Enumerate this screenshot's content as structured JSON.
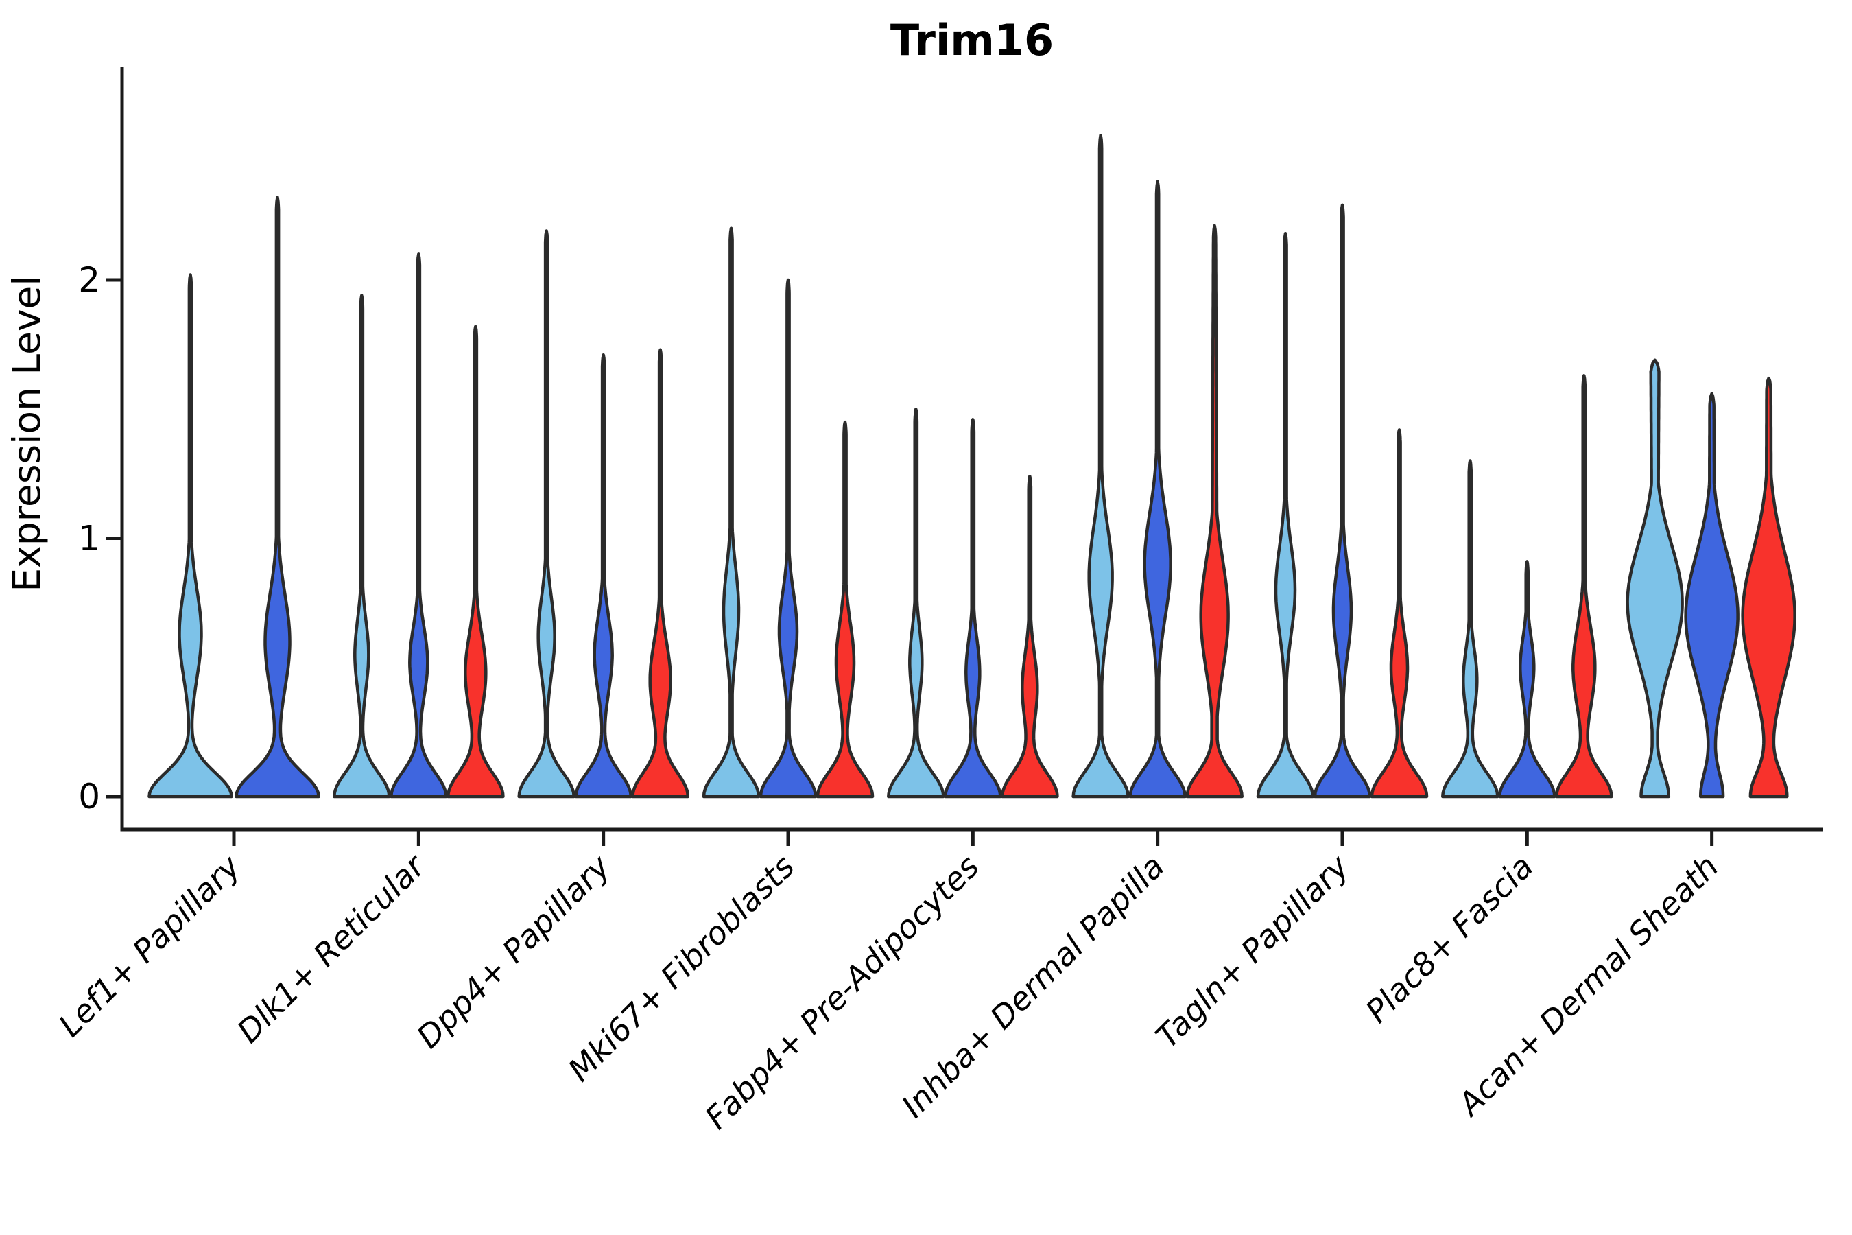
{
  "chart_data": {
    "type": "violin",
    "title": "Trim16",
    "ylabel": "Expression Level",
    "ytick_labels": [
      "0",
      "1",
      "2"
    ],
    "yticks": [
      0,
      1,
      2
    ],
    "ylim": [
      -0.13,
      2.8
    ],
    "legend": "none",
    "grid": false,
    "categories": [
      "Lef1+ Papillary",
      "Dlk1+ Reticular",
      "Dpp4+ Papillary",
      "Mki67+ Fibroblasts",
      "Fabp4+ Pre-Adipocytes",
      "Inhba+ Dermal Papilla",
      "Tagln+ Papillary",
      "Plac8+ Fascia",
      "Acan+ Dermal Sheath"
    ],
    "split_colors": {
      "s1": "#7DC2E8",
      "s2": "#3F66DF",
      "s3": "#F8322C"
    },
    "stroke_color": "#2B2B2B",
    "axis_color": "#1A1A1A",
    "groups": [
      {
        "category": "Lef1+ Papillary",
        "violins": [
          {
            "split": "s1",
            "max": 2.02,
            "bulge_center": 0.63,
            "bulge_halfwidth": 16,
            "bulge_sigma": 0.24,
            "base_halfwidth": 60
          },
          {
            "split": "s2",
            "max": 2.32,
            "bulge_center": 0.6,
            "bulge_halfwidth": 18,
            "bulge_sigma": 0.26,
            "base_halfwidth": 60
          }
        ]
      },
      {
        "category": "Dlk1+ Reticular",
        "violins": [
          {
            "split": "s1",
            "max": 1.94,
            "bulge_center": 0.55,
            "bulge_halfwidth": 10,
            "bulge_sigma": 0.19,
            "base_halfwidth": 40
          },
          {
            "split": "s2",
            "max": 2.1,
            "bulge_center": 0.52,
            "bulge_halfwidth": 13,
            "bulge_sigma": 0.19,
            "base_halfwidth": 40
          },
          {
            "split": "s3",
            "max": 1.82,
            "bulge_center": 0.48,
            "bulge_halfwidth": 15,
            "bulge_sigma": 0.21,
            "base_halfwidth": 40
          }
        ]
      },
      {
        "category": "Dpp4+ Papillary",
        "violins": [
          {
            "split": "s1",
            "max": 2.19,
            "bulge_center": 0.62,
            "bulge_halfwidth": 12,
            "bulge_sigma": 0.21,
            "base_halfwidth": 40
          },
          {
            "split": "s2",
            "max": 1.71,
            "bulge_center": 0.55,
            "bulge_halfwidth": 13,
            "bulge_sigma": 0.2,
            "base_halfwidth": 40
          },
          {
            "split": "s3",
            "max": 1.73,
            "bulge_center": 0.45,
            "bulge_halfwidth": 15,
            "bulge_sigma": 0.21,
            "base_halfwidth": 40
          }
        ]
      },
      {
        "category": "Mki67+ Fibroblasts",
        "violins": [
          {
            "split": "s1",
            "max": 2.2,
            "bulge_center": 0.72,
            "bulge_halfwidth": 11,
            "bulge_sigma": 0.23,
            "base_halfwidth": 40
          },
          {
            "split": "s2",
            "max": 2.0,
            "bulge_center": 0.64,
            "bulge_halfwidth": 13,
            "bulge_sigma": 0.21,
            "base_halfwidth": 40
          },
          {
            "split": "s3",
            "max": 1.45,
            "bulge_center": 0.52,
            "bulge_halfwidth": 13,
            "bulge_sigma": 0.21,
            "base_halfwidth": 40
          }
        ]
      },
      {
        "category": "Fabp4+ Pre-Adipocytes",
        "violins": [
          {
            "split": "s1",
            "max": 1.5,
            "bulge_center": 0.52,
            "bulge_halfwidth": 9,
            "bulge_sigma": 0.18,
            "base_halfwidth": 40
          },
          {
            "split": "s2",
            "max": 1.46,
            "bulge_center": 0.48,
            "bulge_halfwidth": 10,
            "bulge_sigma": 0.18,
            "base_halfwidth": 40
          },
          {
            "split": "s3",
            "max": 1.24,
            "bulge_center": 0.42,
            "bulge_halfwidth": 11,
            "bulge_sigma": 0.19,
            "base_halfwidth": 40
          }
        ]
      },
      {
        "category": "Inhba+ Dermal Papilla",
        "violins": [
          {
            "split": "s1",
            "max": 2.56,
            "bulge_center": 0.85,
            "bulge_halfwidth": 17,
            "bulge_sigma": 0.27,
            "base_halfwidth": 40
          },
          {
            "split": "s2",
            "max": 2.38,
            "bulge_center": 0.9,
            "bulge_halfwidth": 19,
            "bulge_sigma": 0.28,
            "base_halfwidth": 40
          },
          {
            "split": "s3",
            "max": 2.21,
            "bulge_center": 0.7,
            "bulge_halfwidth": 20,
            "bulge_sigma": 0.3,
            "base_halfwidth": 40,
            "stem": 4
          }
        ]
      },
      {
        "category": "Tagln+ Papillary",
        "violins": [
          {
            "split": "s1",
            "max": 2.18,
            "bulge_center": 0.8,
            "bulge_halfwidth": 14,
            "bulge_sigma": 0.24,
            "base_halfwidth": 40
          },
          {
            "split": "s2",
            "max": 2.29,
            "bulge_center": 0.72,
            "bulge_halfwidth": 13,
            "bulge_sigma": 0.23,
            "base_halfwidth": 40
          },
          {
            "split": "s3",
            "max": 1.42,
            "bulge_center": 0.5,
            "bulge_halfwidth": 12,
            "bulge_sigma": 0.19,
            "base_halfwidth": 40
          }
        ]
      },
      {
        "category": "Plac8+ Fascia",
        "violins": [
          {
            "split": "s1",
            "max": 1.3,
            "bulge_center": 0.45,
            "bulge_halfwidth": 10,
            "bulge_sigma": 0.17,
            "base_halfwidth": 40
          },
          {
            "split": "s2",
            "max": 0.91,
            "bulge_center": 0.5,
            "bulge_halfwidth": 10,
            "bulge_sigma": 0.16,
            "base_halfwidth": 40
          },
          {
            "split": "s3",
            "max": 1.63,
            "bulge_center": 0.5,
            "bulge_halfwidth": 16,
            "bulge_sigma": 0.22,
            "base_halfwidth": 40
          }
        ]
      },
      {
        "category": "Acan+ Dermal Sheath",
        "violins": [
          {
            "split": "s1",
            "max": 1.69,
            "bulge_center": 0.75,
            "bulge_halfwidth": 40,
            "bulge_sigma": 0.32,
            "base_halfwidth": 20,
            "stem": 4,
            "top_hw": 6
          },
          {
            "split": "s2",
            "max": 1.56,
            "bulge_center": 0.7,
            "bulge_halfwidth": 38,
            "bulge_sigma": 0.33,
            "base_halfwidth": 16,
            "stem": 4,
            "top_hw": 3
          },
          {
            "split": "s3",
            "max": 1.62,
            "bulge_center": 0.7,
            "bulge_halfwidth": 38,
            "bulge_sigma": 0.35,
            "base_halfwidth": 26,
            "stem": 4,
            "top_hw": 3
          }
        ]
      }
    ]
  }
}
